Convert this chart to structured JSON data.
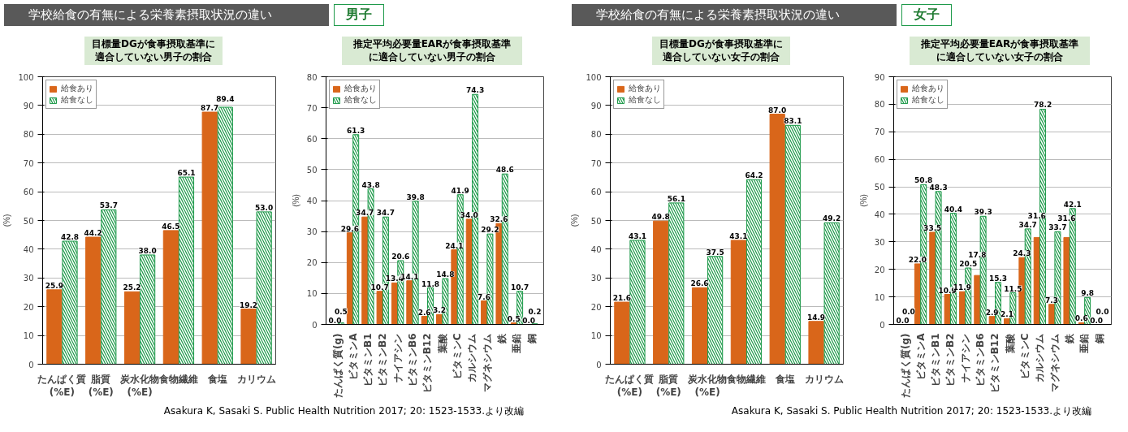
{
  "chart_data": [
    {
      "type": "bar",
      "title": "目標量DGが食事摂取基準に適合していない男子の割合",
      "ylabel": "(%)",
      "annotations": [
        "学校給食の有無による栄養素摂取状況の違い",
        "男子"
      ],
      "categories": [
        "たんぱく質\n(%E)",
        "脂質\n(%E)",
        "炭水化物\n(%E)",
        "食物繊維",
        "食塩",
        "カリウム"
      ],
      "series": [
        {
          "name": "給食あり",
          "color": "#d9661a",
          "values": [
            25.9,
            44.2,
            25.2,
            46.5,
            87.7,
            19.2
          ],
          "value_labels": [
            "25.9",
            "44.2",
            "25.2",
            "46.5",
            "87.7",
            "19.2"
          ]
        },
        {
          "name": "給食なし",
          "color": "#1e9a4a",
          "values": [
            42.8,
            53.7,
            38.0,
            65.1,
            89.4,
            53.0
          ],
          "value_labels": [
            "42.8",
            "53.7",
            "38.0",
            "65.1",
            "89.4",
            "53.0"
          ]
        }
      ],
      "ylim": [
        0,
        100
      ],
      "yticks": [
        0,
        10,
        20,
        30,
        40,
        50,
        60,
        70,
        80,
        90,
        100
      ],
      "grid": "y",
      "legend": "top left"
    },
    {
      "type": "bar",
      "title": "推定平均必要量EARが食事摂取基準に適合していない男子の割合",
      "ylabel": "(%)",
      "annotations": [
        "Asakura K, Sasaki S. Public Health Nutrition 2017; 20: 1523-1533.より改編"
      ],
      "categories": [
        "たんぱく質(g)",
        "ビタミンA",
        "ビタミンB1",
        "ビタミンB2",
        "ナイアシン",
        "ビタミンB6",
        "ビタミンB12",
        "葉酸",
        "ビタミンC",
        "カルシウム",
        "マグネシウム",
        "鉄",
        "亜鉛",
        "銅"
      ],
      "series": [
        {
          "name": "給食あり",
          "color": "#d9661a",
          "values": [
            0.0,
            29.6,
            34.7,
            10.7,
            13.4,
            14.1,
            2.6,
            3.2,
            24.1,
            34.0,
            7.6,
            32.6,
            0.5,
            0.0
          ],
          "value_labels": [
            "0.0",
            "29.6",
            "34.7",
            "10.7",
            "13.4",
            "14.1",
            "2.6",
            "3.2",
            "24.1",
            "34.0",
            "7.6",
            "32.6",
            "0.5",
            "0.0"
          ]
        },
        {
          "name": "給食なし",
          "color": "#1e9a4a",
          "values": [
            0.5,
            61.3,
            43.8,
            34.7,
            20.6,
            39.8,
            11.8,
            14.8,
            41.9,
            74.3,
            29.2,
            48.6,
            10.7,
            0.2
          ],
          "value_labels": [
            "0.5",
            "61.3",
            "43.8",
            "34.7",
            "20.6",
            "39.8",
            "11.8",
            "14.8",
            "41.9",
            "74.3",
            "29.2",
            "48.6",
            "10.7",
            "0.2"
          ]
        }
      ],
      "ylim": [
        0,
        80
      ],
      "yticks": [
        0,
        10,
        20,
        30,
        40,
        50,
        60,
        70,
        80
      ],
      "grid": "y",
      "legend": "top left"
    },
    {
      "type": "bar",
      "title": "目標量DGが食事摂取基準に適合していない女子の割合",
      "ylabel": "(%)",
      "annotations": [
        "学校給食の有無による栄養素摂取状況の違い",
        "女子"
      ],
      "categories": [
        "たんぱく質\n(%E)",
        "脂質\n(%E)",
        "炭水化物\n(%E)",
        "食物繊維",
        "食塩",
        "カリウム"
      ],
      "series": [
        {
          "name": "給食あり",
          "color": "#d9661a",
          "values": [
            21.6,
            49.8,
            26.6,
            43.1,
            87.0,
            14.9
          ],
          "value_labels": [
            "21.6",
            "49.8",
            "26.6",
            "43.1",
            "87.0",
            "14.9"
          ]
        },
        {
          "name": "給食なし",
          "color": "#1e9a4a",
          "values": [
            43.1,
            56.1,
            37.5,
            64.2,
            83.1,
            49.2
          ],
          "value_labels": [
            "43.1",
            "56.1",
            "37.5",
            "64.2",
            "83.1",
            "49.2"
          ]
        }
      ],
      "ylim": [
        0,
        100
      ],
      "yticks": [
        0,
        10,
        20,
        30,
        40,
        50,
        60,
        70,
        80,
        90,
        100
      ],
      "grid": "y",
      "legend": "top left"
    },
    {
      "type": "bar",
      "title": "推定平均必要量EARが食事摂取基準に適合していない女子の割合",
      "ylabel": "(%)",
      "annotations": [
        "Asakura K, Sasaki S. Public Health Nutrition 2017; 20: 1523-1533.より改編"
      ],
      "categories": [
        "たんぱく質(g)",
        "ビタミンA",
        "ビタミンB1",
        "ビタミンB2",
        "ナイアシン",
        "ビタミンB6",
        "ビタミンB12",
        "葉酸",
        "ビタミンC",
        "カルシウム",
        "マグネシウム",
        "鉄",
        "亜鉛",
        "銅"
      ],
      "series": [
        {
          "name": "給食あり",
          "color": "#d9661a",
          "values": [
            0.0,
            22.0,
            33.5,
            10.9,
            11.9,
            17.8,
            2.9,
            2.1,
            24.3,
            31.6,
            7.3,
            31.6,
            0.6,
            0.0
          ],
          "value_labels": [
            "0.0",
            "22.0",
            "33.5",
            "10.9",
            "11.9",
            "17.8",
            "2.9",
            "2.1",
            "24.3",
            "31.6",
            "7.3",
            "31.6",
            "0.6",
            "0.0"
          ]
        },
        {
          "name": "給食なし",
          "color": "#1e9a4a",
          "values": [
            0.0,
            50.8,
            48.3,
            40.4,
            20.5,
            39.3,
            15.3,
            11.5,
            34.7,
            78.2,
            33.7,
            42.1,
            9.8,
            0.0
          ],
          "value_labels": [
            "0.0",
            "50.8",
            "48.3",
            "40.4",
            "20.5",
            "39.3",
            "15.3",
            "11.5",
            "34.7",
            "78.2",
            "33.7",
            "42.1",
            "9.8",
            "0.0"
          ]
        }
      ],
      "ylim": [
        0,
        90
      ],
      "yticks": [
        0,
        10,
        20,
        30,
        40,
        50,
        60,
        70,
        80,
        90
      ],
      "grid": "y",
      "legend": "top left"
    }
  ]
}
